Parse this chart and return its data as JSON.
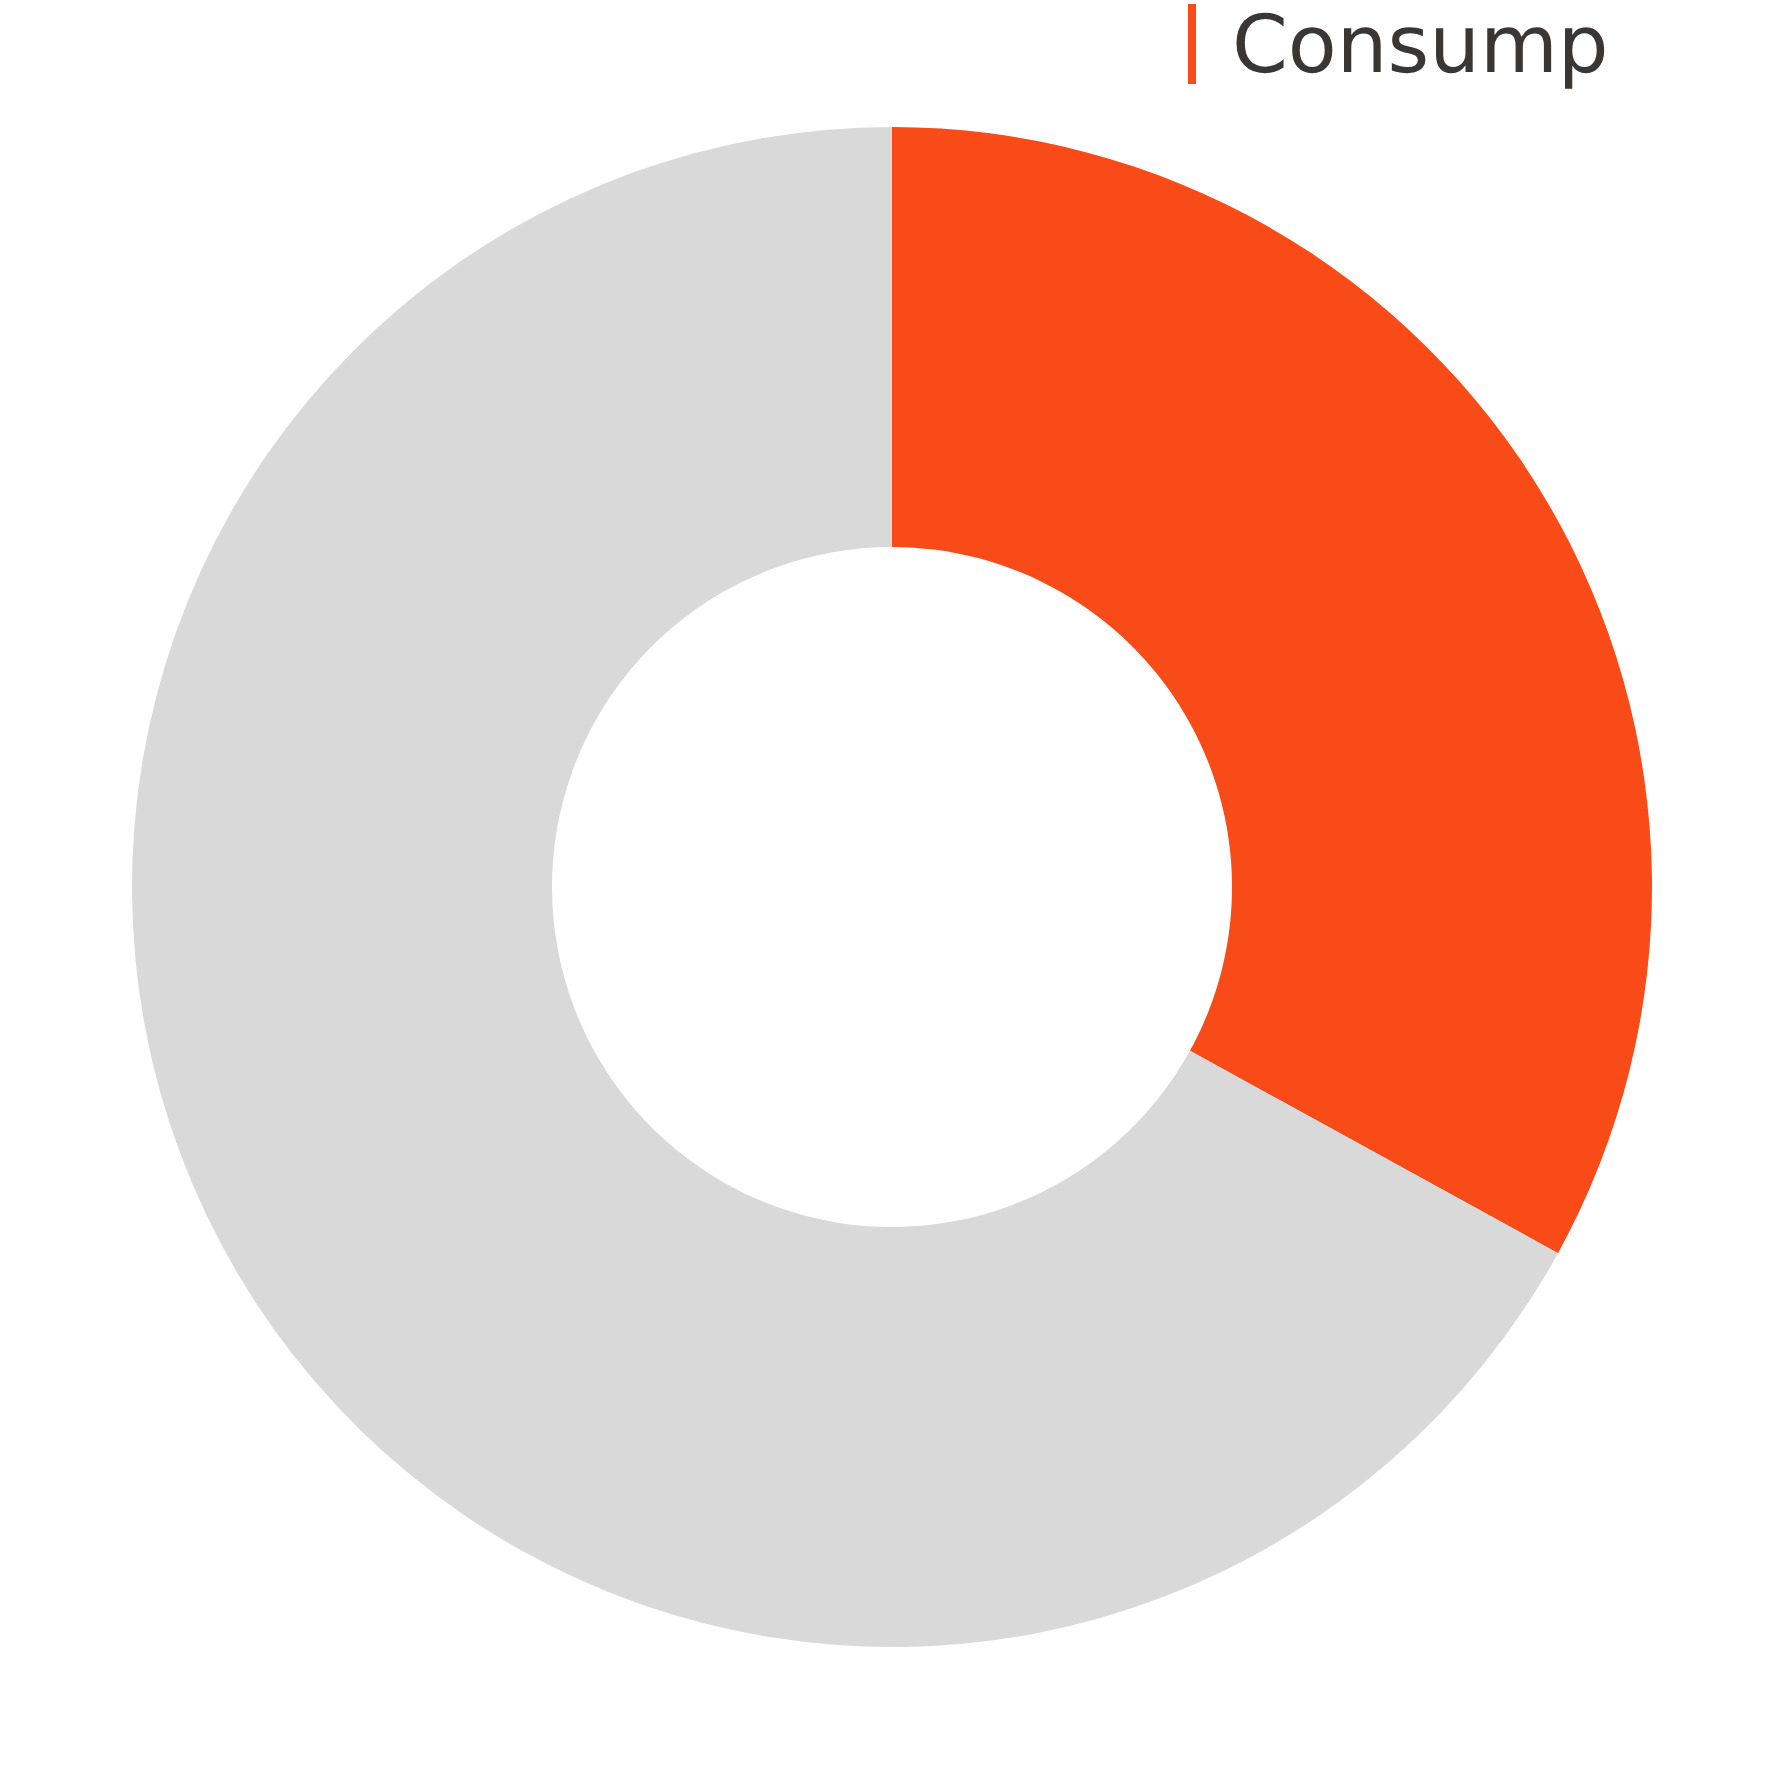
{
  "chart_data": {
    "type": "donut",
    "categories": [
      "Consump",
      null
    ],
    "values": [
      33,
      67
    ],
    "colors": [
      "#f84b18",
      "#d9d9d9"
    ],
    "legend": false
  }
}
